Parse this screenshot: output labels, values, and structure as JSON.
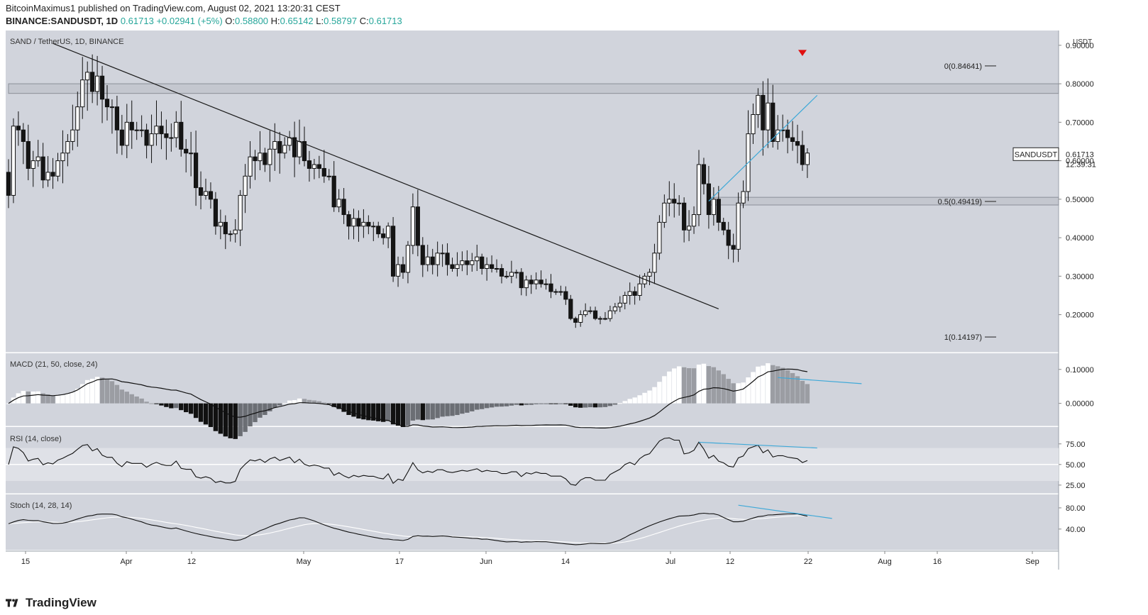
{
  "header": {
    "publisher": "BitcoinMaximus1 published on TradingView.com, August 02, 2021 13:20:31 CEST",
    "symbol": "BINANCE:SANDUSDT, 1D",
    "last": "0.61713",
    "change": "+0.02941 (+5%)",
    "o_label": "O:",
    "o": "0.58800",
    "h_label": "H:",
    "h": "0.65142",
    "l_label": "L:",
    "l": "0.58797",
    "c_label": "C:",
    "c": "0.61713"
  },
  "footer": {
    "brand": "TradingView"
  },
  "colors": {
    "panel_bg": "#d1d4dc",
    "band_bg": "#dfe1e7",
    "trend_line": "#1a1a1a",
    "accent_line": "#3fa9d8",
    "marker": "#e01010",
    "zone": "#c4c7cf"
  },
  "chart_data": [
    {
      "type": "candlestick",
      "title": "SAND / TetherUS, 1D, BINANCE",
      "currency": "USDT",
      "x_tick_labels": [
        "15",
        "Apr",
        "12",
        "May",
        "17",
        "Jun",
        "14",
        "Jul",
        "12",
        "22",
        "Aug",
        "16",
        "Sep"
      ],
      "y_tick_labels": [
        "0.90000",
        "0.80000",
        "0.70000",
        "0.60000",
        "0.50000",
        "0.40000",
        "0.30000",
        "0.20000"
      ],
      "ylim": [
        0.12,
        0.92
      ],
      "symbol_tag": {
        "name": "SANDUSDT",
        "price": "0.61713",
        "countdown": "12:39:31"
      },
      "fib_levels": [
        {
          "label": "0(0.84641)",
          "value": 0.84641
        },
        {
          "label": "0.5(0.49419)",
          "value": 0.49419
        },
        {
          "label": "1(0.14197)",
          "value": 0.14197
        }
      ],
      "resistance_zone": [
        0.775,
        0.8
      ],
      "support_zone": [
        0.485,
        0.505
      ],
      "close": [
        0.51,
        0.69,
        0.68,
        0.65,
        0.58,
        0.6,
        0.61,
        0.55,
        0.57,
        0.56,
        0.6,
        0.62,
        0.65,
        0.68,
        0.74,
        0.81,
        0.83,
        0.78,
        0.82,
        0.76,
        0.74,
        0.74,
        0.68,
        0.64,
        0.7,
        0.68,
        0.68,
        0.68,
        0.64,
        0.67,
        0.69,
        0.67,
        0.66,
        0.66,
        0.7,
        0.63,
        0.62,
        0.62,
        0.53,
        0.51,
        0.52,
        0.5,
        0.43,
        0.44,
        0.41,
        0.41,
        0.42,
        0.51,
        0.56,
        0.61,
        0.6,
        0.62,
        0.59,
        0.63,
        0.65,
        0.62,
        0.64,
        0.66,
        0.61,
        0.65,
        0.6,
        0.58,
        0.59,
        0.58,
        0.56,
        0.56,
        0.48,
        0.5,
        0.46,
        0.43,
        0.45,
        0.43,
        0.44,
        0.43,
        0.43,
        0.41,
        0.4,
        0.43,
        0.3,
        0.33,
        0.31,
        0.38,
        0.48,
        0.38,
        0.33,
        0.35,
        0.33,
        0.36,
        0.36,
        0.33,
        0.32,
        0.33,
        0.34,
        0.33,
        0.34,
        0.35,
        0.32,
        0.33,
        0.32,
        0.32,
        0.3,
        0.3,
        0.31,
        0.31,
        0.27,
        0.29,
        0.28,
        0.29,
        0.28,
        0.28,
        0.26,
        0.26,
        0.26,
        0.24,
        0.19,
        0.18,
        0.2,
        0.21,
        0.21,
        0.19,
        0.19,
        0.19,
        0.21,
        0.22,
        0.23,
        0.25,
        0.26,
        0.25,
        0.28,
        0.3,
        0.31,
        0.36,
        0.44,
        0.49,
        0.5,
        0.49,
        0.49,
        0.42,
        0.43,
        0.46,
        0.59,
        0.54,
        0.46,
        0.5,
        0.44,
        0.42,
        0.38,
        0.37,
        0.49,
        0.52,
        0.67,
        0.72,
        0.77,
        0.68,
        0.75,
        0.65,
        0.68,
        0.68,
        0.66,
        0.65,
        0.64,
        0.59,
        0.62
      ],
      "annotations": [
        "descending trendline",
        "blue rally line",
        "red down marker at 0.84641 high"
      ]
    },
    {
      "type": "line+histogram",
      "title": "MACD (21, 50, close, 24)",
      "y_tick_labels": [
        "0.10000",
        "0.00000"
      ],
      "ylim": [
        -0.055,
        0.135
      ],
      "annotations": [
        "blue bearish divergence line"
      ]
    },
    {
      "type": "line",
      "title": "RSI (14, close)",
      "y_tick_labels": [
        "75.00",
        "50.00",
        "25.00"
      ],
      "ylim": [
        18,
        92
      ],
      "band": [
        30,
        70
      ],
      "midline": 50,
      "annotations": [
        "blue bearish divergence line"
      ]
    },
    {
      "type": "line",
      "title": "Stoch (14, 28, 14)",
      "y_tick_labels": [
        "80.00",
        "40.00"
      ],
      "ylim": [
        5,
        100
      ],
      "annotations": [
        "blue bearish divergence line"
      ]
    }
  ]
}
